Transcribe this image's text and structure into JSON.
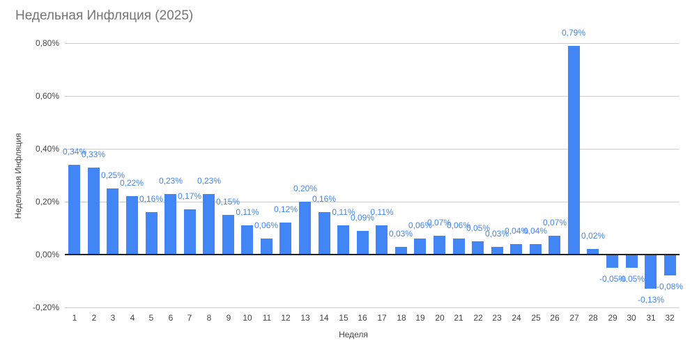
{
  "chart_data": {
    "type": "bar",
    "title": "Недельная Инфляция (2025)",
    "xlabel": "Неделя",
    "ylabel": "Недельная Инфляция",
    "categories": [
      "1",
      "2",
      "3",
      "4",
      "5",
      "6",
      "7",
      "8",
      "9",
      "10",
      "11",
      "12",
      "13",
      "14",
      "15",
      "16",
      "17",
      "18",
      "19",
      "20",
      "21",
      "22",
      "23",
      "24",
      "25",
      "26",
      "27",
      "28",
      "29",
      "30",
      "31",
      "32"
    ],
    "values": [
      0.34,
      0.33,
      0.25,
      0.22,
      0.16,
      0.23,
      0.17,
      0.23,
      0.15,
      0.11,
      0.06,
      0.12,
      0.2,
      0.16,
      0.11,
      0.09,
      0.11,
      0.03,
      0.06,
      0.07,
      0.06,
      0.05,
      0.03,
      0.04,
      0.04,
      0.07,
      0.79,
      0.02,
      -0.05,
      -0.05,
      -0.13,
      -0.08
    ],
    "data_labels": [
      "0,34%",
      "0,33%",
      "0,25%",
      "0,22%",
      "0,16%",
      "0,23%",
      "0,17%",
      "0,23%",
      "0,15%",
      "0,11%",
      "0,06%",
      "0,12%",
      "0,20%",
      "0,16%",
      "0,11%",
      "0,09%",
      "0,11%",
      "0,03%",
      "0,06%",
      "0,07%",
      "0,06%",
      "0,05%",
      "0,03%",
      "0,04%",
      "0,04%",
      "0,07%",
      "0,79%",
      "0,02%",
      "-0,05%",
      "-0,05%",
      "-0,13%",
      "-0,08%"
    ],
    "y_ticks": [
      {
        "label": "0,80%",
        "value": 0.8
      },
      {
        "label": "0,60%",
        "value": 0.6
      },
      {
        "label": "0,40%",
        "value": 0.4
      },
      {
        "label": "0,20%",
        "value": 0.2
      },
      {
        "label": "0,00%",
        "value": 0.0
      },
      {
        "label": "-0,20%",
        "value": -0.2
      }
    ],
    "ylim": [
      -0.2,
      0.8
    ],
    "grid": true,
    "legend": "none",
    "bar_color": "#4285f4",
    "data_label_color": "#4285f4"
  }
}
